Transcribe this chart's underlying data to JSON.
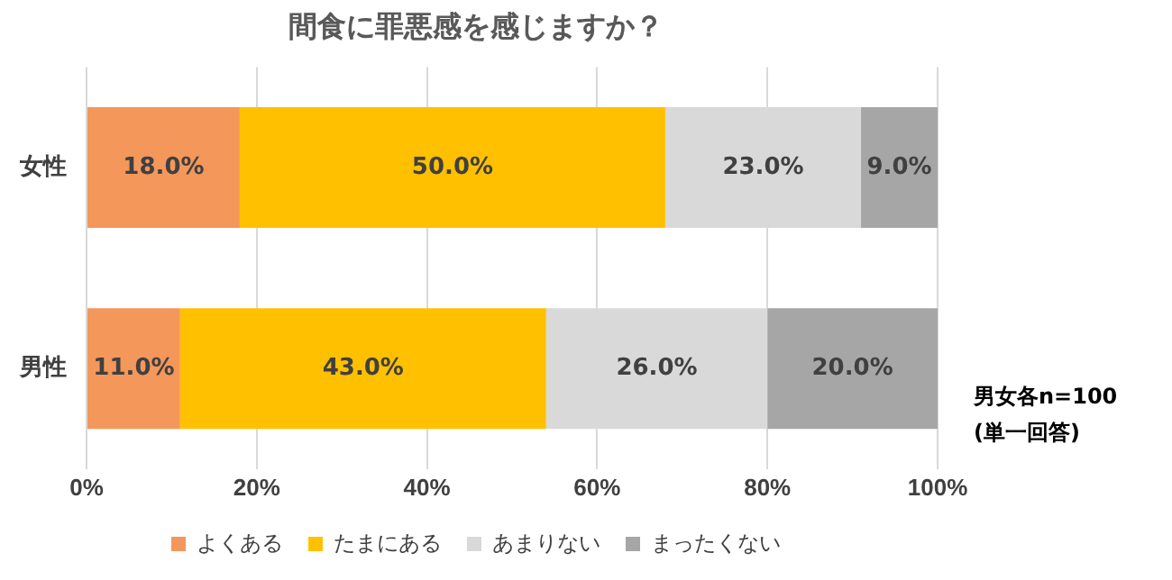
{
  "chart_data": {
    "type": "bar",
    "orientation": "horizontal",
    "stacked": true,
    "title": "間食に罪悪感を感じますか？",
    "categories": [
      "女性",
      "男性"
    ],
    "series": [
      {
        "name": "よくある",
        "color": "#f4975b",
        "values": [
          18.0,
          11.0
        ],
        "value_labels": [
          "18.0%",
          "11.0%"
        ]
      },
      {
        "name": "たまにある",
        "color": "#ffc000",
        "values": [
          50.0,
          43.0
        ],
        "value_labels": [
          "50.0%",
          "43.0%"
        ]
      },
      {
        "name": "あまりない",
        "color": "#d9d9d9",
        "values": [
          23.0,
          26.0
        ],
        "value_labels": [
          "23.0%",
          "26.0%"
        ]
      },
      {
        "name": "まったくない",
        "color": "#a6a6a6",
        "values": [
          9.0,
          20.0
        ],
        "value_labels": [
          "9.0%",
          "20.0%"
        ]
      }
    ],
    "xlim": [
      0,
      100
    ],
    "xticks": [
      {
        "value": 0,
        "label": "0%"
      },
      {
        "value": 20,
        "label": "20%"
      },
      {
        "value": 40,
        "label": "40%"
      },
      {
        "value": 60,
        "label": "60%"
      },
      {
        "value": 80,
        "label": "80%"
      },
      {
        "value": 100,
        "label": "100%"
      }
    ],
    "grid": "x",
    "legend": "bottom",
    "annotations": [
      "男女各n=100",
      "(単一回答)"
    ]
  }
}
